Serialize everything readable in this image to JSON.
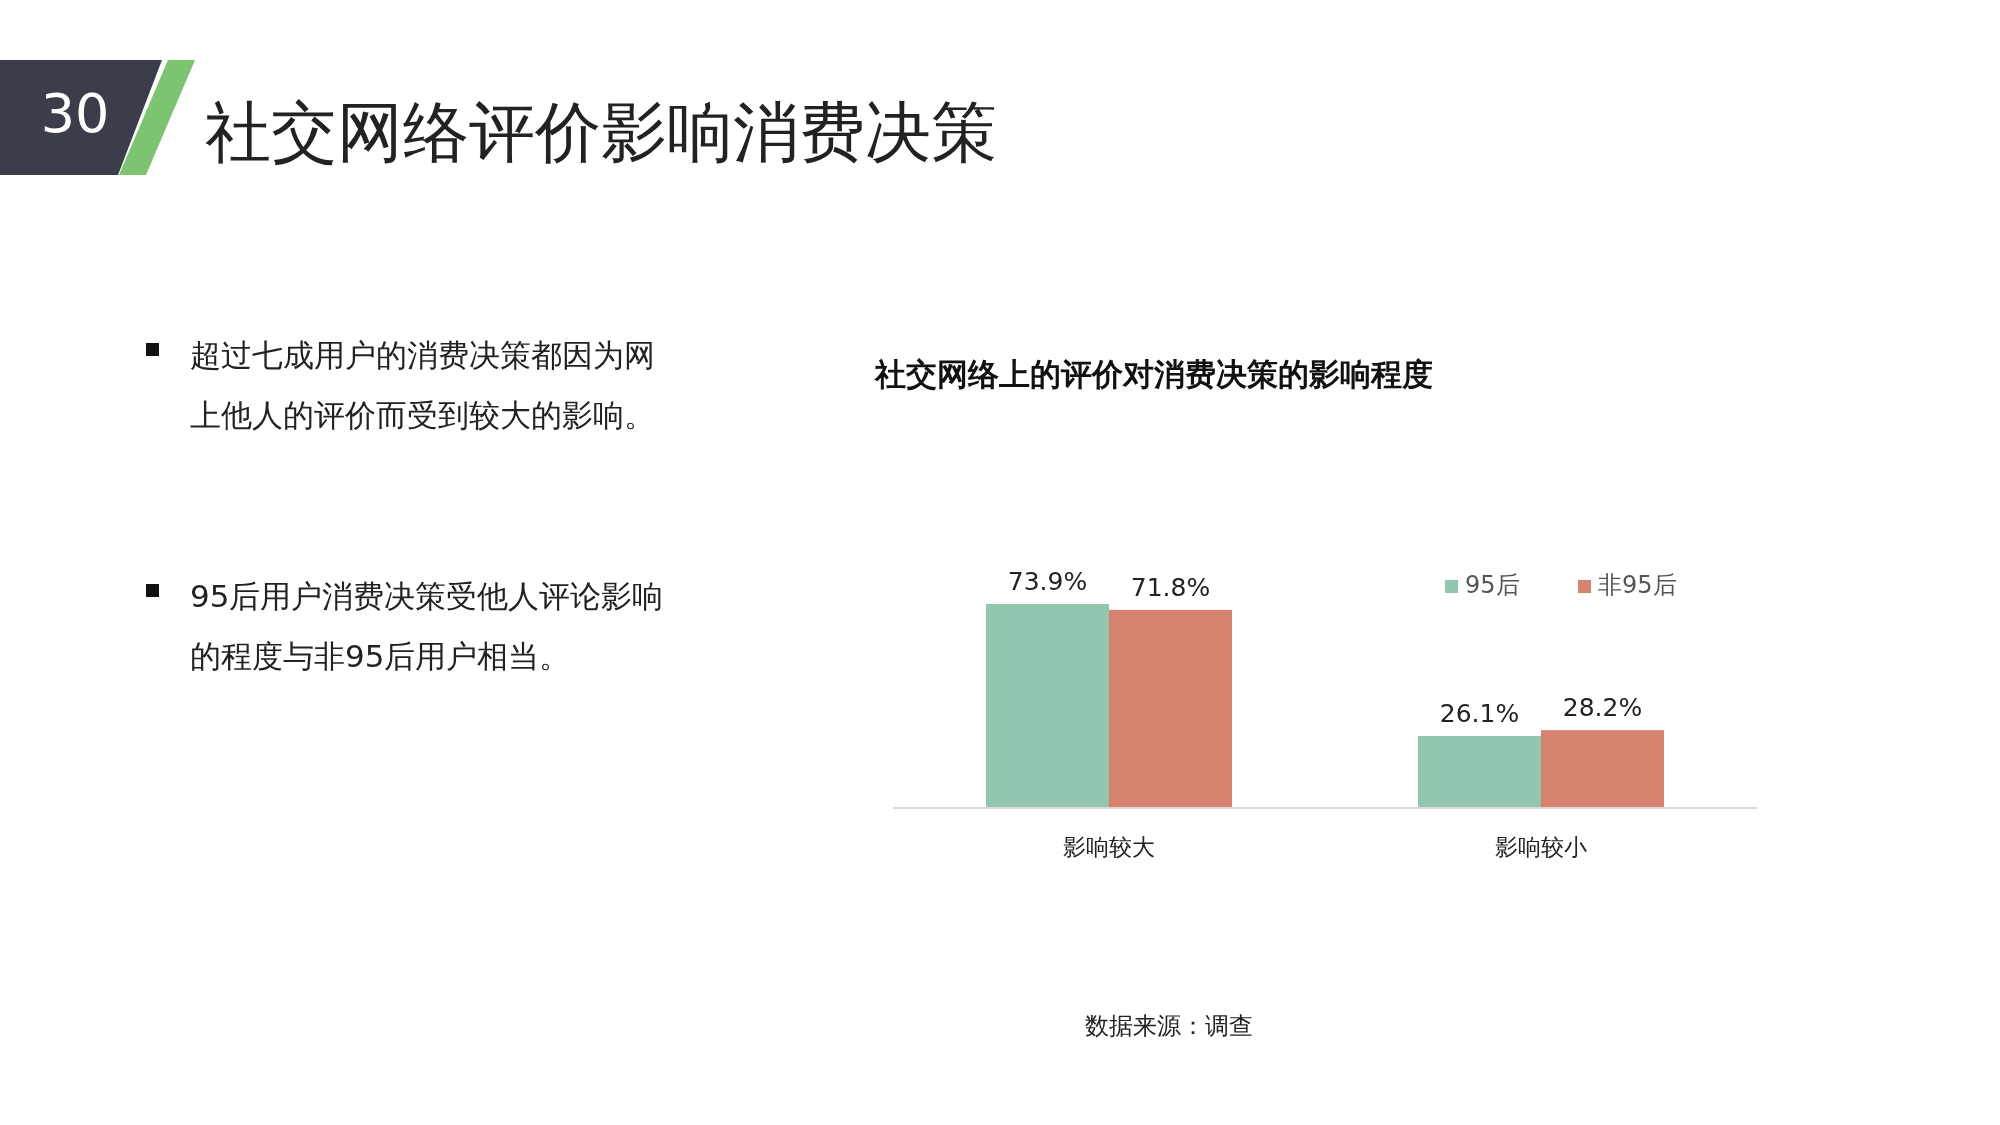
{
  "chart_data": {
    "type": "bar",
    "title": "社交网络上的评价对消费决策的影响程度",
    "categories": [
      "影响较大",
      "影响较小"
    ],
    "series": [
      {
        "name": "95后",
        "color": "#93c6ae",
        "values": [
          73.9,
          26.1
        ],
        "value_labels": [
          "73.9%",
          "26.1%"
        ]
      },
      {
        "name": "非95后",
        "color": "#d5826e",
        "values": [
          71.8,
          28.2
        ],
        "value_labels": [
          "71.8%",
          "28.2%"
        ]
      }
    ],
    "legend": "top right",
    "annotations": [
      "30",
      "社交网络评价影响消费决策",
      "超过七成用户的消费决策都因为网上他人的评价而受到较大的影响。",
      "95后用户消费决策受他人评论影响的程度与非95后用户相当。",
      "数据来源：调查"
    ]
  }
}
